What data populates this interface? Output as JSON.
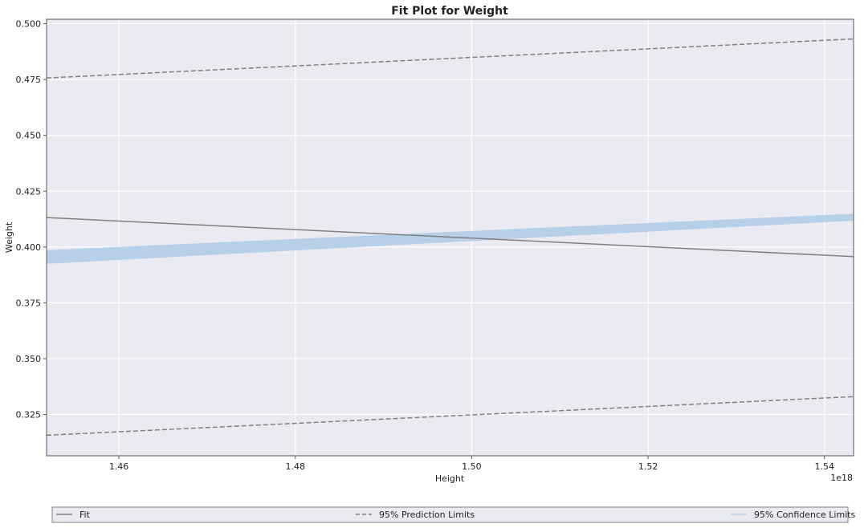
{
  "chart_data": {
    "type": "line",
    "title": "Fit Plot for Weight",
    "xlabel": "Height",
    "ylabel": "Weight",
    "x_offset_label": "1e18",
    "xlim": [
      1.4518,
      1.5433
    ],
    "ylim": [
      0.3065,
      0.502
    ],
    "x_ticks": [
      1.46,
      1.48,
      1.5,
      1.52,
      1.54
    ],
    "x_tick_labels": [
      "1.46",
      "1.48",
      "1.50",
      "1.52",
      "1.54"
    ],
    "y_ticks": [
      0.325,
      0.35,
      0.375,
      0.4,
      0.425,
      0.45,
      0.475,
      0.5
    ],
    "y_tick_labels": [
      "0.325",
      "0.350",
      "0.375",
      "0.400",
      "0.425",
      "0.450",
      "0.475",
      "0.500"
    ],
    "grid": true,
    "legend_position": "bottom",
    "series": [
      {
        "name": "Fit",
        "style": "solid",
        "color": "#808080",
        "x": [
          1.4518,
          1.5433
        ],
        "y": [
          0.4132,
          0.3957
        ]
      },
      {
        "name": "95% Prediction Limits",
        "style": "dashed",
        "color": "#808080",
        "x": [
          1.4518,
          1.5433
        ],
        "y": [
          0.4757,
          0.4932
        ]
      },
      {
        "name": "95% Prediction Limits",
        "style": "dashed",
        "color": "#808080",
        "x": [
          1.4518,
          1.5433
        ],
        "y": [
          0.3157,
          0.333
        ]
      },
      {
        "name": "95% Confidence Limits",
        "style": "band",
        "color": "#b8cfe8",
        "x": [
          1.4518,
          1.5433
        ],
        "y_upper": [
          0.3986,
          0.4149
        ],
        "y_lower": [
          0.3925,
          0.4118
        ]
      }
    ],
    "legend": [
      {
        "label": "Fit",
        "style": "solid",
        "color": "#808080"
      },
      {
        "label": "95% Prediction Limits",
        "style": "dashed",
        "color": "#808080"
      },
      {
        "label": "95% Confidence Limits",
        "style": "solid",
        "color": "#b8cfe8"
      }
    ],
    "colors": {
      "plot_bg": "#eaeaf2",
      "grid": "#ffffff",
      "spine": "#555555"
    }
  }
}
